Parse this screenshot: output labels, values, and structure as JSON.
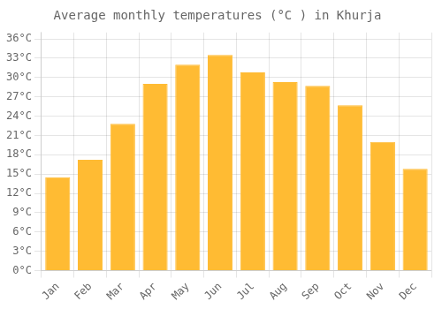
{
  "chart_data": {
    "type": "bar",
    "title": "Average monthly temperatures (°C ) in Khurja",
    "categories": [
      "Jan",
      "Feb",
      "Mar",
      "Apr",
      "May",
      "Jun",
      "Jul",
      "Aug",
      "Sep",
      "Oct",
      "Nov",
      "Dec"
    ],
    "values": [
      14.5,
      17.2,
      22.8,
      29.0,
      32.0,
      33.5,
      30.8,
      29.3,
      28.7,
      25.7,
      20.0,
      15.8
    ],
    "color": "#FFBB33",
    "ylim": [
      0,
      37
    ],
    "yticks": [
      {
        "value": 0,
        "label": "0°C"
      },
      {
        "value": 3,
        "label": "3°C"
      },
      {
        "value": 6,
        "label": "6°C"
      },
      {
        "value": 9,
        "label": "9°C"
      },
      {
        "value": 12,
        "label": "12°C"
      },
      {
        "value": 15,
        "label": "15°C"
      },
      {
        "value": 18,
        "label": "18°C"
      },
      {
        "value": 21,
        "label": "21°C"
      },
      {
        "value": 24,
        "label": "24°C"
      },
      {
        "value": 27,
        "label": "27°C"
      },
      {
        "value": 30,
        "label": "30°C"
      },
      {
        "value": 33,
        "label": "33°C"
      },
      {
        "value": 36,
        "label": "36°C"
      }
    ],
    "grid": true
  }
}
